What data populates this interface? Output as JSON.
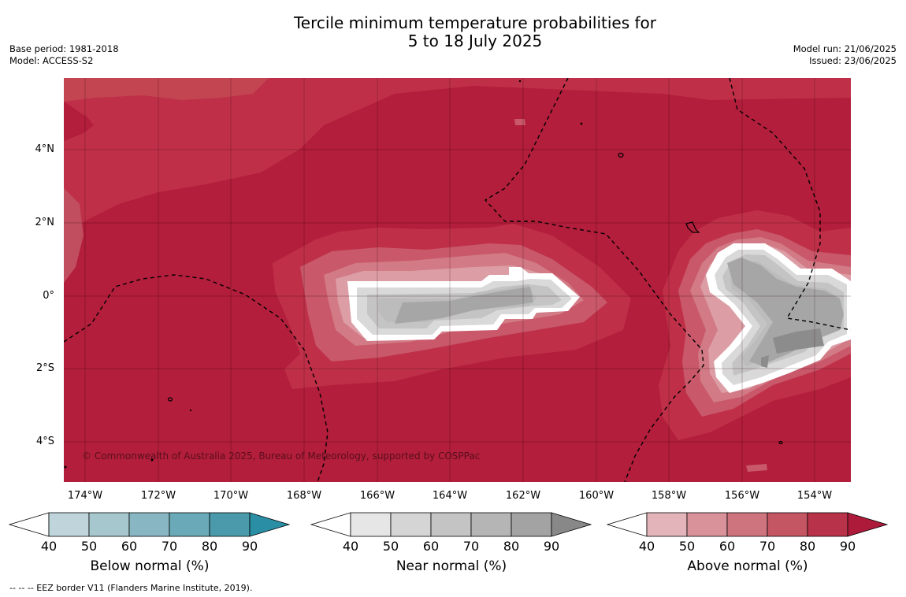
{
  "title": {
    "line1": "Tercile minimum temperature probabilities for",
    "line2": "5 to 18 July 2025"
  },
  "meta": {
    "base_period": "Base period: 1981-2018",
    "model": "Model: ACCESS-S2",
    "model_run": "Model run: 21/06/2025",
    "issued": "Issued: 23/06/2025"
  },
  "map": {
    "copyright": "© Commonwealth of Australia 2025, Bureau of Meteorology, supported by COSPPac",
    "lat_labels": [
      "4°N",
      "2°N",
      "0°",
      "2°S",
      "4°S"
    ],
    "lon_labels": [
      "174°W",
      "172°W",
      "170°W",
      "168°W",
      "166°W",
      "164°W",
      "162°W",
      "160°W",
      "158°W",
      "156°W",
      "154°W"
    ],
    "dominant_category": "Above normal",
    "colors": {
      "above_90": "#b21e3b",
      "above_80": "#c33a4f",
      "above_70": "#c8586a",
      "above_60": "#d27a85",
      "above_50": "#dc9da5",
      "near_50": "#d9d9d9",
      "near_70": "#bcbcbc",
      "near_80": "#a6a6a6",
      "near_90": "#8c8c8c"
    }
  },
  "legends": [
    {
      "title": "Below normal (%)",
      "ticks": [
        "40",
        "50",
        "60",
        "70",
        "80",
        "90"
      ],
      "colors": [
        "#ffffff",
        "#bfd5db",
        "#a5c7cd",
        "#88b7c3",
        "#6aaab8",
        "#4a9aab",
        "#2a8fa5"
      ]
    },
    {
      "title": "Near normal (%)",
      "ticks": [
        "40",
        "50",
        "60",
        "70",
        "80",
        "90"
      ],
      "colors": [
        "#ffffff",
        "#e6e6e6",
        "#d5d5d5",
        "#c4c4c4",
        "#b5b5b5",
        "#a3a3a3",
        "#888888"
      ]
    },
    {
      "title": "Above normal (%)",
      "ticks": [
        "40",
        "50",
        "60",
        "70",
        "80",
        "90"
      ],
      "colors": [
        "#ffffff",
        "#e3b5ba",
        "#d99299",
        "#ce747e",
        "#c45563",
        "#b8324a",
        "#ad1a3a"
      ]
    }
  ],
  "footnote": "-- -- -- EEZ border V11 (Flanders Marine Institute, 2019)."
}
